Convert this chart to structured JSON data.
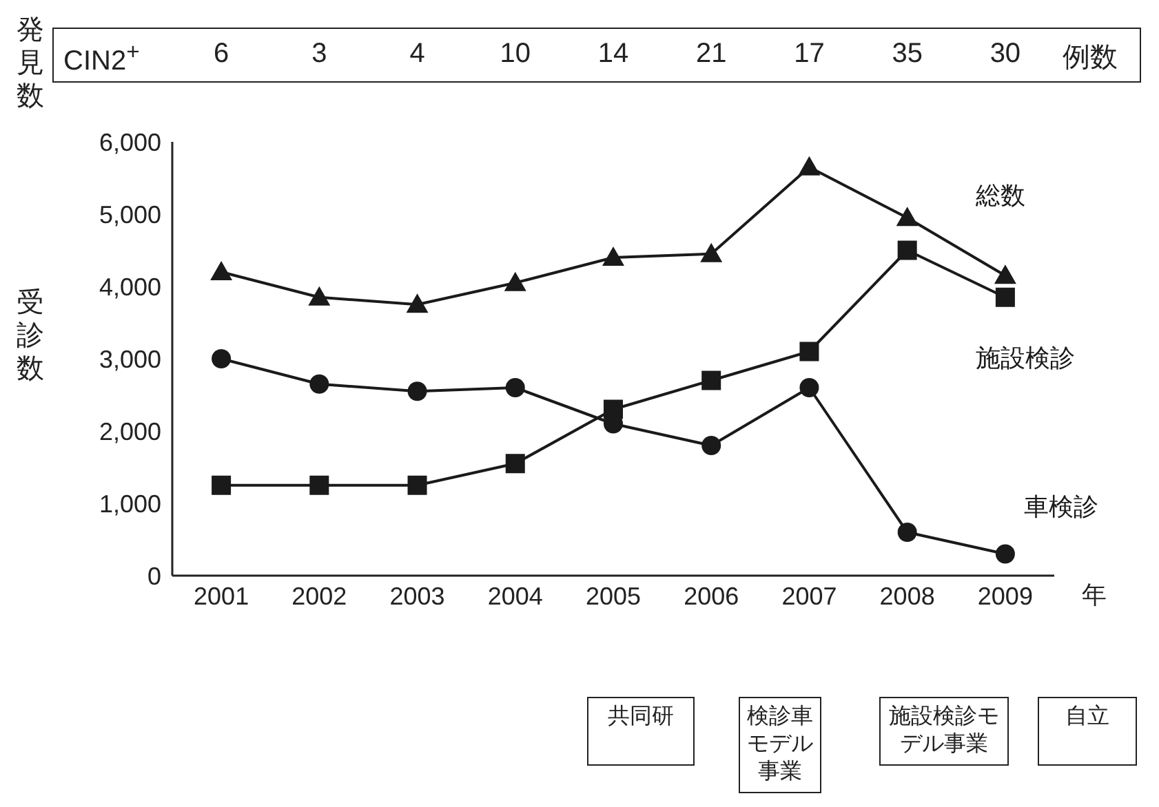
{
  "chart_data": {
    "type": "line",
    "ylabel": "受診数",
    "xlabel": "年",
    "categories": [
      "2001",
      "2002",
      "2003",
      "2004",
      "2005",
      "2006",
      "2007",
      "2008",
      "2009"
    ],
    "series": [
      {
        "name": "総数",
        "color": "#1a1a1a",
        "marker": "triangle",
        "values": [
          4200,
          3850,
          3750,
          4050,
          4400,
          4450,
          5650,
          4950,
          4150
        ]
      },
      {
        "name": "施設検診",
        "color": "#1a1a1a",
        "marker": "square",
        "values": [
          1250,
          1250,
          1250,
          1550,
          2300,
          2700,
          3100,
          4500,
          3850
        ]
      },
      {
        "name": "車検診",
        "color": "#1a1a1a",
        "marker": "circle",
        "values": [
          3000,
          2650,
          2550,
          2600,
          2100,
          1800,
          2600,
          600,
          300
        ]
      }
    ],
    "ylim": [
      0,
      6000
    ],
    "yticks": [
      0,
      {
        "value": 1000,
        "label": "1,000"
      },
      {
        "value": 2000,
        "label": "2,000"
      },
      {
        "value": 3000,
        "label": "3,000"
      },
      {
        "value": 4000,
        "label": "4,000"
      },
      {
        "value": 5000,
        "label": "5,000"
      },
      {
        "value": 6000,
        "label": "6,000"
      }
    ],
    "grid": false,
    "legend": false,
    "line_style": "solid",
    "annotations": [
      "発見数",
      "CIN2$^{+}$",
      "6",
      "3",
      "4",
      "10",
      "14",
      "21",
      "17",
      "35",
      "30",
      "例数",
      "共同研",
      "検診車モデル事業",
      "施設検診モデル事業",
      "自立"
    ]
  }
}
